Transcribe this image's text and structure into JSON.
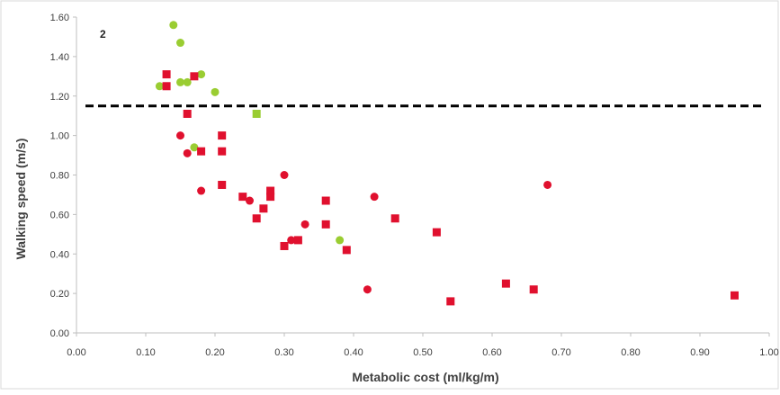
{
  "chart_data": {
    "type": "scatter",
    "panel_label": "2",
    "xlabel": "Metabolic cost (ml/kg/m)",
    "ylabel": "Walking speed (m/s)",
    "xlim": [
      0.0,
      1.0
    ],
    "ylim": [
      0.0,
      1.6
    ],
    "x_ticks": [
      "0.00",
      "0.10",
      "0.20",
      "0.30",
      "0.40",
      "0.50",
      "0.60",
      "0.70",
      "0.80",
      "0.90",
      "1.00"
    ],
    "y_ticks": [
      "0.00",
      "0.20",
      "0.40",
      "0.60",
      "0.80",
      "1.00",
      "1.20",
      "1.40",
      "1.60"
    ],
    "grid": false,
    "reference_line": {
      "y": 1.15,
      "style": "dashed",
      "color": "#000000"
    },
    "colors": {
      "green": "#9acd32",
      "red": "#e0102e"
    },
    "series": [
      {
        "marker": "circle",
        "color": "#9acd32",
        "points": [
          [
            0.14,
            1.56
          ],
          [
            0.15,
            1.47
          ],
          [
            0.12,
            1.25
          ],
          [
            0.15,
            1.27
          ],
          [
            0.16,
            1.27
          ],
          [
            0.18,
            1.31
          ],
          [
            0.2,
            1.22
          ],
          [
            0.17,
            0.94
          ],
          [
            0.38,
            0.47
          ]
        ]
      },
      {
        "marker": "square",
        "color": "#9acd32",
        "points": [
          [
            0.26,
            1.11
          ]
        ]
      },
      {
        "marker": "circle",
        "color": "#e0102e",
        "points": [
          [
            0.15,
            1.0
          ],
          [
            0.16,
            0.91
          ],
          [
            0.18,
            0.72
          ],
          [
            0.25,
            0.67
          ],
          [
            0.3,
            0.8
          ],
          [
            0.31,
            0.47
          ],
          [
            0.33,
            0.55
          ],
          [
            0.42,
            0.22
          ],
          [
            0.43,
            0.69
          ],
          [
            0.68,
            0.75
          ]
        ]
      },
      {
        "marker": "square",
        "color": "#e0102e",
        "points": [
          [
            0.13,
            1.31
          ],
          [
            0.13,
            1.25
          ],
          [
            0.16,
            1.11
          ],
          [
            0.17,
            1.3
          ],
          [
            0.18,
            0.92
          ],
          [
            0.21,
            1.0
          ],
          [
            0.21,
            0.92
          ],
          [
            0.21,
            0.75
          ],
          [
            0.24,
            0.69
          ],
          [
            0.26,
            0.58
          ],
          [
            0.27,
            0.63
          ],
          [
            0.28,
            0.69
          ],
          [
            0.28,
            0.72
          ],
          [
            0.3,
            0.44
          ],
          [
            0.32,
            0.47
          ],
          [
            0.36,
            0.67
          ],
          [
            0.36,
            0.55
          ],
          [
            0.39,
            0.42
          ],
          [
            0.46,
            0.58
          ],
          [
            0.52,
            0.51
          ],
          [
            0.54,
            0.16
          ],
          [
            0.62,
            0.25
          ],
          [
            0.66,
            0.22
          ],
          [
            0.95,
            0.19
          ]
        ]
      }
    ]
  }
}
